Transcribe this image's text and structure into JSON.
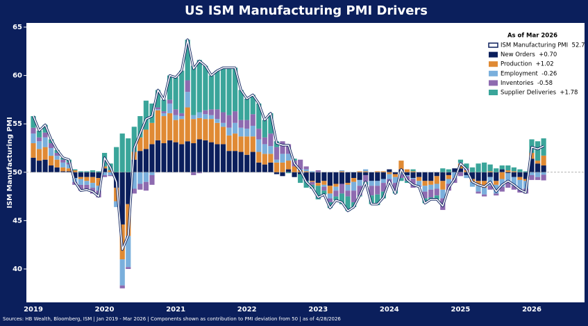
{
  "chart_data": {
    "type": "bar",
    "title": "US ISM Manufacturing PMI Drivers",
    "ylabel": "ISM Manufacturing PMI",
    "legend_title": "As of Mar 2026",
    "source": "Sources: HB Wealth, Bloomberg, ISM | Jan 2019 - Mar 2026 | Components shown as contribution to PMI deviation from 50 | as of 4/28/2026",
    "legend": "upper right",
    "baseline": 50,
    "ylim": [
      36.55,
      65.43
    ],
    "yticks": [
      40,
      45,
      50,
      55,
      60,
      65
    ],
    "categories": [
      "2019",
      null,
      null,
      null,
      null,
      null,
      null,
      null,
      null,
      null,
      null,
      null,
      "2020",
      null,
      null,
      null,
      null,
      null,
      null,
      null,
      null,
      null,
      null,
      null,
      "2021",
      null,
      null,
      null,
      null,
      null,
      null,
      null,
      null,
      null,
      null,
      null,
      "2022",
      null,
      null,
      null,
      null,
      null,
      null,
      null,
      null,
      null,
      null,
      null,
      "2023",
      null,
      null,
      null,
      null,
      null,
      null,
      null,
      null,
      null,
      null,
      null,
      "2024",
      null,
      null,
      null,
      null,
      null,
      null,
      null,
      null,
      null,
      null,
      null,
      "2025",
      null,
      null,
      null,
      null,
      null,
      null,
      null,
      null,
      null,
      null,
      null,
      "2026",
      null,
      null
    ],
    "series": [
      {
        "name": "ISM Manufacturing PMI  52.7",
        "mark": "line",
        "color": "#0b1f5c",
        "values": [
          55.8,
          54.3,
          54.9,
          53.4,
          52.3,
          51.5,
          51.3,
          49.0,
          48.1,
          48.2,
          48.0,
          47.5,
          51.5,
          50.5,
          49.0,
          42.0,
          43.5,
          52.5,
          54.0,
          55.5,
          55.8,
          58.5,
          57.5,
          60.0,
          59.8,
          60.5,
          63.7,
          60.7,
          61.5,
          61.0,
          60.0,
          60.5,
          60.8,
          60.8,
          60.8,
          58.5,
          57.6,
          58.0,
          57.1,
          55.4,
          56.1,
          53.0,
          52.8,
          52.8,
          50.9,
          50.2,
          49.0,
          48.4,
          47.4,
          47.7,
          46.3,
          47.1,
          46.9,
          46.0,
          46.4,
          47.6,
          49.0,
          46.7,
          46.7,
          47.4,
          49.1,
          47.8,
          50.3,
          49.2,
          48.7,
          48.5,
          46.8,
          47.2,
          47.2,
          46.5,
          48.4,
          49.3,
          50.9,
          50.3,
          49.0,
          48.7,
          48.5,
          49.0,
          48.0,
          48.7,
          49.1,
          48.7,
          48.2,
          47.9,
          52.6,
          52.4,
          52.7
        ]
      },
      {
        "name": "New Orders  +0.70",
        "mark": "bar",
        "color": "#0b1f5c",
        "values": [
          1.5,
          1.2,
          1.3,
          0.7,
          0.5,
          0.1,
          0.1,
          -0.6,
          -0.5,
          -0.5,
          -0.5,
          -0.6,
          0.4,
          0.0,
          -1.6,
          -5.4,
          -3.3,
          1.3,
          2.2,
          2.4,
          2.9,
          3.3,
          3.0,
          3.3,
          3.1,
          2.9,
          3.2,
          3.0,
          3.4,
          3.3,
          3.1,
          2.9,
          2.9,
          2.2,
          2.2,
          2.1,
          1.8,
          2.1,
          1.0,
          0.8,
          1.0,
          -0.2,
          -0.4,
          0.3,
          -0.5,
          -0.2,
          -0.9,
          -0.9,
          -1.1,
          -0.9,
          -1.4,
          -1.2,
          -1.2,
          -1.1,
          -0.6,
          -0.8,
          -0.3,
          -0.9,
          -0.9,
          -0.7,
          0.3,
          -0.2,
          0.3,
          -0.3,
          -0.6,
          -0.5,
          -0.9,
          -0.9,
          -0.4,
          -0.9,
          -0.3,
          0.4,
          0.4,
          -0.3,
          -0.7,
          -0.9,
          -0.9,
          -0.5,
          -0.9,
          0.3,
          -0.1,
          -0.5,
          -0.5,
          -0.7,
          1.4,
          0.9,
          0.7
        ]
      },
      {
        "name": "Production  +1.02",
        "mark": "bar",
        "color": "#e08a34",
        "values": [
          1.5,
          1.2,
          1.3,
          1.0,
          0.8,
          0.4,
          0.3,
          0.2,
          -0.2,
          -0.4,
          -0.6,
          -0.8,
          0.2,
          0.2,
          -1.4,
          -3.6,
          -3.3,
          0.8,
          1.4,
          2.0,
          2.2,
          3.1,
          2.8,
          2.8,
          2.3,
          2.6,
          3.5,
          2.5,
          2.2,
          2.2,
          2.4,
          2.2,
          1.8,
          1.6,
          1.8,
          1.6,
          1.9,
          1.6,
          1.1,
          1.1,
          0.9,
          1.0,
          1.0,
          0.9,
          0.6,
          0.2,
          0.1,
          -0.1,
          -0.3,
          -0.4,
          -0.8,
          -0.3,
          0.1,
          -0.2,
          -0.4,
          0.1,
          0.1,
          0.0,
          0.1,
          0.1,
          -0.2,
          -0.3,
          0.9,
          0.3,
          0.1,
          -0.4,
          -0.5,
          -0.4,
          -0.8,
          -0.9,
          -0.4,
          0.0,
          0.5,
          0.2,
          -0.3,
          -0.5,
          -0.7,
          0.1,
          -0.4,
          -0.7,
          0.2,
          0.1,
          -0.3,
          -0.2,
          0.6,
          0.3,
          1.02
        ]
      },
      {
        "name": "Employment  -0.26",
        "mark": "bar",
        "color": "#7aafdc",
        "values": [
          1.0,
          0.8,
          1.0,
          0.8,
          0.4,
          0.5,
          0.4,
          -0.4,
          -0.6,
          -0.4,
          -0.5,
          -0.5,
          -0.3,
          -0.3,
          -0.6,
          -2.7,
          -3.2,
          -1.7,
          -1.2,
          -1.0,
          -0.3,
          0.1,
          0.3,
          1.0,
          0.5,
          0.3,
          1.6,
          0.4,
          0.6,
          0.5,
          0.4,
          0.4,
          0.4,
          0.8,
          1.1,
          0.9,
          0.8,
          1.1,
          1.3,
          1.0,
          0.8,
          0.3,
          0.9,
          0.7,
          0.0,
          0.1,
          0.2,
          0.1,
          0.0,
          -0.2,
          -0.5,
          -0.4,
          0.1,
          -0.6,
          -0.9,
          -0.6,
          0.2,
          -0.5,
          -0.5,
          -0.4,
          -0.5,
          -0.6,
          -0.2,
          -0.1,
          -0.1,
          -0.5,
          -0.6,
          -0.5,
          -0.5,
          -0.9,
          -0.5,
          -0.6,
          0.1,
          -0.3,
          -0.5,
          -0.6,
          -0.7,
          -0.9,
          -0.9,
          -0.8,
          -0.9,
          -0.9,
          -0.9,
          -0.8,
          -0.3,
          -0.5,
          -0.26
        ]
      },
      {
        "name": "Inventories  -0.58",
        "mark": "bar",
        "color": "#8e6bb0",
        "values": [
          0.6,
          0.4,
          0.5,
          0.5,
          0.3,
          0.3,
          0.2,
          -0.3,
          -0.6,
          -0.6,
          -0.6,
          -0.7,
          -0.2,
          -0.1,
          0.0,
          -0.3,
          -0.2,
          -0.5,
          -0.6,
          -0.9,
          -1.0,
          0.2,
          0.2,
          0.4,
          0.6,
          0.3,
          1.2,
          -0.3,
          -0.1,
          0.4,
          0.6,
          1.0,
          1.1,
          1.3,
          1.2,
          0.8,
          0.9,
          1.2,
          1.1,
          0.7,
          1.3,
          1.3,
          1.3,
          1.0,
          0.6,
          1.0,
          0.3,
          -0.3,
          0.2,
          -0.4,
          -0.4,
          -0.6,
          -1.0,
          -0.6,
          -1.2,
          -1.0,
          -0.7,
          -1.0,
          -0.9,
          -0.9,
          -0.5,
          -0.8,
          -0.4,
          -0.5,
          -0.9,
          -0.1,
          -0.7,
          -0.8,
          -0.7,
          -1.2,
          -0.7,
          -0.5,
          -0.4,
          0.2,
          0.0,
          -0.2,
          -0.2,
          -0.4,
          -0.2,
          -0.5,
          -0.6,
          -0.4,
          -0.4,
          -0.5,
          -0.5,
          -0.3,
          -0.58
        ]
      },
      {
        "name": "Supplier Deliveries  +1.78",
        "mark": "bar",
        "color": "#3aa59a",
        "values": [
          1.2,
          0.7,
          0.8,
          0.4,
          0.3,
          0.2,
          0.3,
          0.1,
          0.1,
          0.1,
          0.2,
          0.1,
          1.4,
          0.7,
          2.6,
          4.0,
          3.5,
          2.6,
          2.2,
          3.0,
          2.0,
          1.8,
          1.2,
          2.5,
          3.3,
          4.4,
          4.2,
          5.1,
          5.4,
          4.6,
          3.5,
          4.0,
          4.6,
          4.9,
          4.5,
          3.1,
          2.2,
          2.0,
          2.6,
          1.8,
          2.1,
          0.6,
          0.0,
          -0.1,
          0.2,
          -0.9,
          -0.7,
          -0.4,
          -1.4,
          -0.4,
          -0.6,
          -0.4,
          -1.1,
          -1.5,
          -0.5,
          -0.1,
          -0.3,
          -0.9,
          -1.1,
          -0.7,
          0.0,
          -0.3,
          -0.3,
          -0.2,
          0.2,
          0.0,
          -0.5,
          -0.2,
          -0.4,
          0.4,
          0.3,
          0.0,
          0.3,
          0.5,
          0.5,
          0.9,
          1.0,
          0.7,
          0.4,
          0.4,
          0.5,
          0.4,
          0.3,
          0.1,
          1.4,
          2.0,
          1.78
        ]
      }
    ]
  }
}
